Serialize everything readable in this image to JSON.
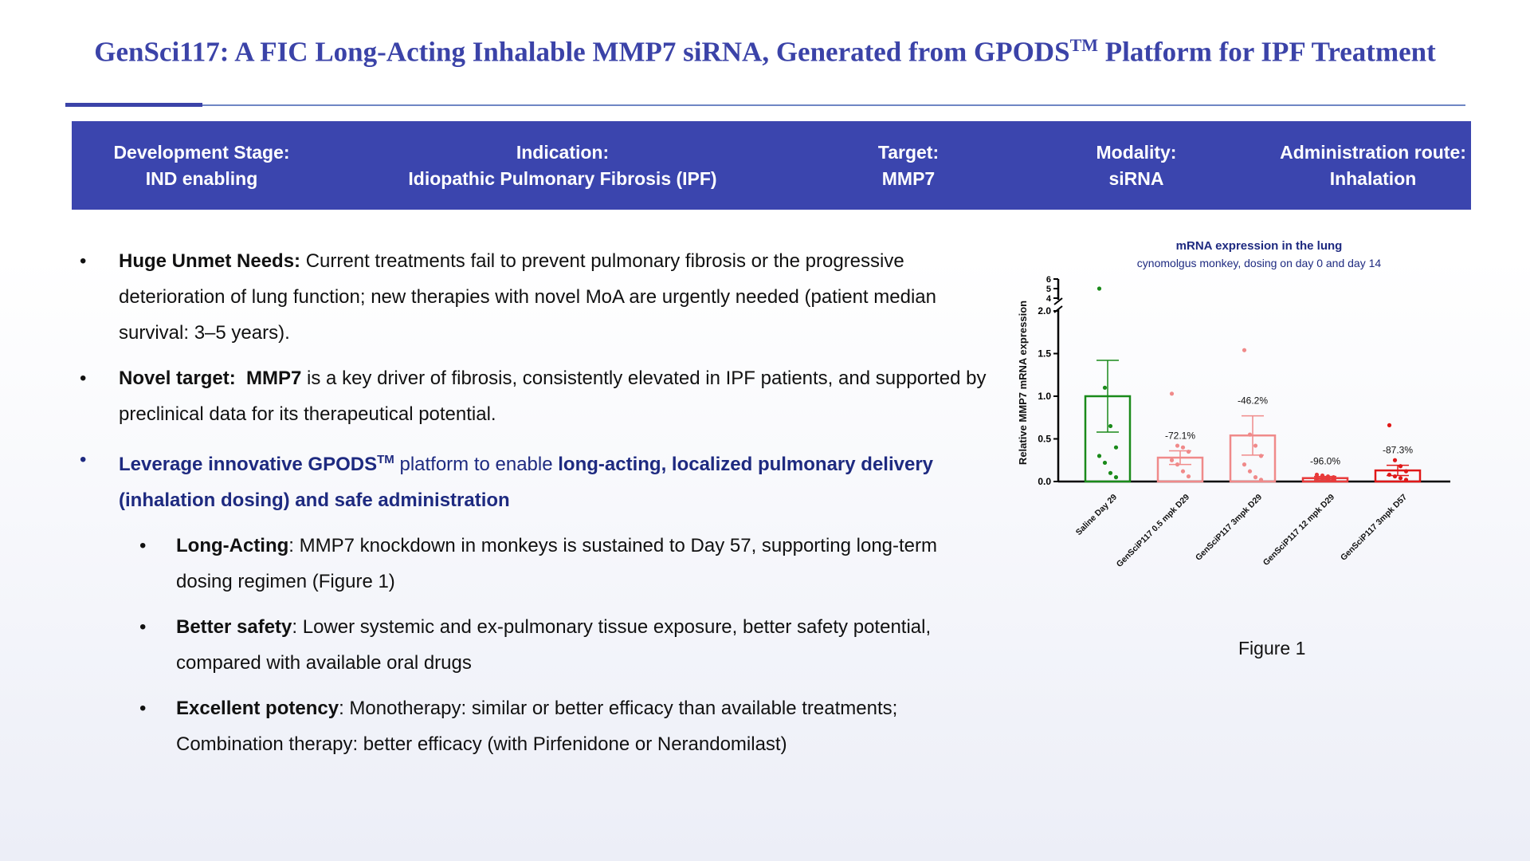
{
  "slide": {
    "title_main": "GenSci117: A FIC Long-Acting Inhalable MMP7 siRNA, Generated from GPODS",
    "title_sup": "TM",
    "title_end": " Platform for IPF Treatment"
  },
  "banner": {
    "items": [
      {
        "label": "Development Stage:",
        "value": "IND enabling"
      },
      {
        "label": "Indication:",
        "value": "Idiopathic Pulmonary Fibrosis (IPF)"
      },
      {
        "label": "Target:",
        "value": "MMP7"
      },
      {
        "label": "Modality:",
        "value": "siRNA"
      },
      {
        "label": "Administration route:",
        "value": "Inhalation"
      }
    ]
  },
  "bullets": {
    "b1": {
      "bold": "Huge Unmet Needs:",
      "text": " Current treatments fail to prevent pulmonary fibrosis or the progressive deterioration of lung function; new therapies with novel MoA are urgently needed (patient median survival: 3–5 years)."
    },
    "b2": {
      "bold1": "Novel target:",
      "bold2": "MMP7",
      "text": " is a key driver of fibrosis, consistently elevated in IPF patients, and supported by preclinical data for its therapeutical potential."
    },
    "b3": {
      "bold1": "Leverage innovative GPODS",
      "sup": "TM",
      "text1": " platform to enable ",
      "bold2": "long-acting, localized pulmonary delivery (inhalation dosing) and safe administration"
    },
    "s1": {
      "bold": "Long-Acting",
      "text": ": MMP7 knockdown in monkeys is sustained to Day 57, supporting long-term dosing regimen (Figure 1)"
    },
    "s2": {
      "bold": "Better safety",
      "text": ": Lower systemic and ex-pulmonary tissue exposure, better safety potential, compared with available oral drugs"
    },
    "s3": {
      "bold": "Excellent potency",
      "text": ": Monotherapy: similar or better efficacy than available treatments; Combination therapy: better efficacy (with Pirfenidone or Nerandomilast)"
    },
    "bullet_char": "•"
  },
  "figure_label": "Figure 1",
  "chart_data": {
    "type": "bar",
    "title": "mRNA expression in the lung",
    "subtitle": "cynomolgus monkey, dosing on day 0 and day 14",
    "ylabel": "Relative MMP7 mRNA expression",
    "xlabel": "",
    "categories": [
      "Saline Day 29",
      "GenSciP117 0.5 mpk D29",
      "GenSciP117 3mpk D29",
      "GenSciP117 12 mpk D29",
      "GenSciP117 3mpk D57"
    ],
    "values": [
      1.0,
      0.28,
      0.54,
      0.04,
      0.13
    ],
    "error": [
      0.42,
      0.08,
      0.23,
      0.02,
      0.06
    ],
    "annotations": [
      "",
      "-72.1%",
      "-46.2%",
      "-96.0%",
      "-87.3%"
    ],
    "colors": [
      "#1a8a1a",
      "#f08a8a",
      "#f08a8a",
      "#e83a3a",
      "#e01818"
    ],
    "points": [
      [
        5.0,
        1.1,
        0.65,
        0.4,
        0.3,
        0.22,
        0.1,
        0.05
      ],
      [
        1.03,
        0.42,
        0.4,
        0.35,
        0.25,
        0.2,
        0.12,
        0.06
      ],
      [
        1.54,
        0.55,
        0.42,
        0.3,
        0.2,
        0.12,
        0.05,
        0.02
      ],
      [
        0.08,
        0.07,
        0.06,
        0.05,
        0.04,
        0.04,
        0.03,
        0.02
      ],
      [
        0.66,
        0.25,
        0.18,
        0.12,
        0.08,
        0.06,
        0.04,
        0.02
      ]
    ],
    "y_ticks_lower": [
      "0.0",
      "0.5",
      "1.0",
      "1.5",
      "2.0"
    ],
    "y_ticks_upper": [
      "4",
      "5",
      "6"
    ],
    "ylim_lower": [
      0,
      2
    ],
    "ylim_upper": [
      4,
      6
    ]
  }
}
